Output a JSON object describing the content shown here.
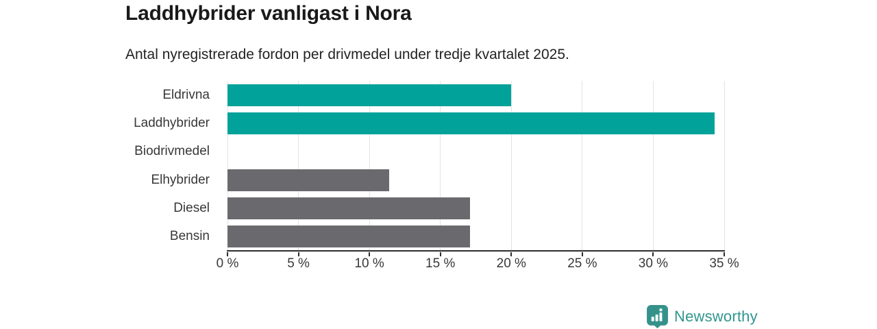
{
  "chart_data": {
    "type": "bar",
    "orientation": "horizontal",
    "title": "Laddhybrider vanligast i Nora",
    "subtitle": "Antal nyregistrerade fordon per drivmedel under tredje kvartalet 2025.",
    "categories": [
      "Eldrivna",
      "Laddhybrider",
      "Biodrivmedel",
      "Elhybrider",
      "Diesel",
      "Bensin"
    ],
    "values": [
      20.0,
      34.3,
      0,
      11.4,
      17.1,
      17.1
    ],
    "unit": "%",
    "highlighted": [
      true,
      true,
      false,
      false,
      false,
      false
    ],
    "colors": {
      "highlight": "#00a29a",
      "default": "#6a6a6e",
      "gridline": "#e3e3e3",
      "axis": "#2d2d2d",
      "text": "#383838"
    },
    "xlim": [
      0,
      35
    ],
    "x_tick_step": 5,
    "x_tick_labels": [
      "0 %",
      "5 %",
      "10 %",
      "15 %",
      "20 %",
      "25 %",
      "30 %",
      "35 %"
    ],
    "grid": "vertical",
    "legend": "none",
    "xlabel": "",
    "ylabel": ""
  },
  "footer": {
    "brand": "Newsworthy",
    "brand_color": "#2f968f",
    "icon_color": "#35928b"
  }
}
